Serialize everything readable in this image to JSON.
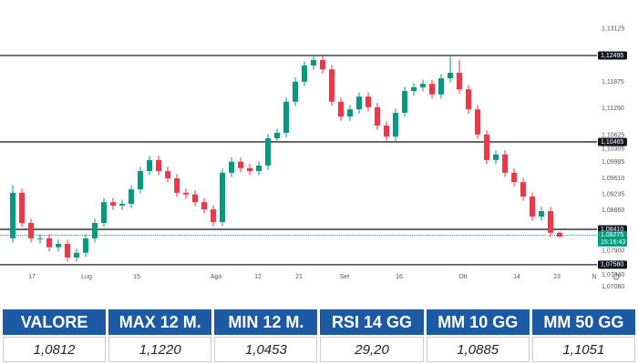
{
  "chart_data": {
    "type": "candlestick",
    "up_color": "#089981",
    "down_color": "#f23645",
    "open": [
      1.082,
      1.0927,
      1.0856,
      1.082,
      1.082,
      1.0799,
      1.0807,
      1.0775,
      1.0786,
      1.082,
      1.0856,
      1.0905,
      1.0897,
      1.0901,
      1.0935,
      1.0978,
      1.1004,
      1.0978,
      1.0961,
      1.0927,
      1.0923,
      1.0905,
      1.0888,
      1.0858,
      1.0974,
      1.1,
      1.0985,
      1.0978,
      1.0991,
      1.1055,
      1.1068,
      1.1141,
      1.1188,
      1.1226,
      1.1239,
      1.1217,
      1.1141,
      1.1106,
      1.1123,
      1.1153,
      1.1128,
      1.1085,
      1.1059,
      1.1115,
      1.1166,
      1.1175,
      1.1183,
      1.1158,
      1.1196,
      1.1209,
      1.117,
      1.1123,
      1.1064,
      1.1004,
      1.1017,
      1.0974,
      1.0952,
      1.0918,
      1.0871,
      1.0884,
      1.0833
    ],
    "high": [
      1.0945,
      1.0937,
      1.0866,
      1.083,
      1.083,
      1.0817,
      1.0817,
      1.0796,
      1.083,
      1.0866,
      1.0915,
      1.0915,
      1.0911,
      1.0945,
      1.0988,
      1.1014,
      1.1014,
      1.0988,
      1.0971,
      1.0937,
      1.0933,
      1.0915,
      1.0898,
      1.0984,
      1.101,
      1.101,
      1.0995,
      1.1001,
      1.1065,
      1.1078,
      1.1151,
      1.1198,
      1.1236,
      1.1252,
      1.1252,
      1.1227,
      1.1151,
      1.1133,
      1.1163,
      1.1163,
      1.1138,
      1.1095,
      1.1125,
      1.1176,
      1.1185,
      1.1193,
      1.1193,
      1.1206,
      1.125,
      1.124,
      1.118,
      1.1133,
      1.1074,
      1.1027,
      1.1027,
      1.0984,
      1.0962,
      1.0928,
      1.0894,
      1.0894,
      1.0836
    ],
    "low": [
      1.081,
      1.0846,
      1.081,
      1.0808,
      1.0789,
      1.0789,
      1.0765,
      1.0765,
      1.0776,
      1.081,
      1.0846,
      1.0887,
      1.0887,
      1.0891,
      1.0925,
      1.0968,
      1.0968,
      1.0951,
      1.0917,
      1.0913,
      1.0895,
      1.0878,
      1.0848,
      1.0848,
      1.0964,
      1.0975,
      1.0968,
      1.0968,
      1.0981,
      1.1045,
      1.1058,
      1.1131,
      1.1178,
      1.1216,
      1.1207,
      1.1131,
      1.1096,
      1.1096,
      1.1113,
      1.1118,
      1.1075,
      1.1049,
      1.1049,
      1.1105,
      1.1156,
      1.1165,
      1.1148,
      1.1148,
      1.1186,
      1.116,
      1.1113,
      1.1054,
      1.0994,
      1.0994,
      1.0964,
      1.0942,
      1.0908,
      1.0861,
      1.0861,
      1.0823,
      1.0822
    ],
    "close": [
      1.0927,
      1.0856,
      1.082,
      1.082,
      1.0799,
      1.0807,
      1.0775,
      1.0786,
      1.082,
      1.0856,
      1.0905,
      1.0897,
      1.0901,
      1.0935,
      1.0978,
      1.1004,
      1.0978,
      1.0961,
      1.0927,
      1.0923,
      1.0905,
      1.0888,
      1.0858,
      1.0974,
      1.1,
      1.0985,
      1.0978,
      1.0991,
      1.1055,
      1.1068,
      1.1141,
      1.1188,
      1.1226,
      1.1239,
      1.1217,
      1.1141,
      1.1106,
      1.1123,
      1.1153,
      1.1128,
      1.1085,
      1.1059,
      1.1115,
      1.1166,
      1.1175,
      1.1183,
      1.1158,
      1.1196,
      1.1209,
      1.117,
      1.1123,
      1.1064,
      1.1004,
      1.1017,
      1.0974,
      1.0952,
      1.0918,
      1.0871,
      1.0884,
      1.0833,
      1.0824
    ],
    "xlim": [
      -1.4,
      63.6
    ],
    "xticks": [
      {
        "value": 2.1,
        "label": "17"
      },
      {
        "value": 8.1,
        "label": "Lug"
      },
      {
        "value": 13.6,
        "label": "15"
      },
      {
        "value": 22.3,
        "label": "Ago"
      },
      {
        "value": 26.9,
        "label": "12"
      },
      {
        "value": 31.4,
        "label": "21"
      },
      {
        "value": 36.4,
        "label": "Set"
      },
      {
        "value": 42.4,
        "label": "16"
      },
      {
        "value": 49.4,
        "label": "Ott"
      },
      {
        "value": 55.3,
        "label": "14"
      },
      {
        "value": 59.7,
        "label": "23"
      },
      {
        "value": 63.8,
        "label": "N"
      }
    ],
    "ylim": [
      1.0685,
      1.138
    ],
    "yticks": [
      {
        "value": 1.13125,
        "label": "1,13125"
      },
      {
        "value": 1.11875,
        "label": "1,11875"
      },
      {
        "value": 1.1125,
        "label": "1,11250"
      },
      {
        "value": 1.10625,
        "label": "1,10625"
      },
      {
        "value": 1.10305,
        "label": "1,10305"
      },
      {
        "value": 1.09985,
        "label": "1,09985"
      },
      {
        "value": 1.0961,
        "label": "1,09610"
      },
      {
        "value": 1.09235,
        "label": "1,09235"
      },
      {
        "value": 1.0886,
        "label": "1,08860"
      },
      {
        "value": 1.079,
        "label": "1,07900"
      },
      {
        "value": 1.0734,
        "label": "1,07340"
      },
      {
        "value": 1.0706,
        "label": "1,07060"
      }
    ],
    "levels": [
      {
        "value": 1.12495,
        "label": "1,12495"
      },
      {
        "value": 1.10465,
        "label": "1,10465"
      },
      {
        "value": 1.0841,
        "label": "1,08410"
      },
      {
        "value": 1.0758,
        "label": "1,07580"
      }
    ],
    "price_line": {
      "value": 1.08275,
      "label": "1,08275",
      "countdown": "15:16:43"
    }
  },
  "table": {
    "headers": [
      "VALORE",
      "MAX 12 M.",
      "MIN 12 M.",
      "RSI 14 GG",
      "MM 10 GG",
      "MM 50 GG"
    ],
    "rows": [
      [
        "1,0812",
        "1,1220",
        "1,0453",
        "29,20",
        "1,0885",
        "1,1051"
      ]
    ]
  }
}
